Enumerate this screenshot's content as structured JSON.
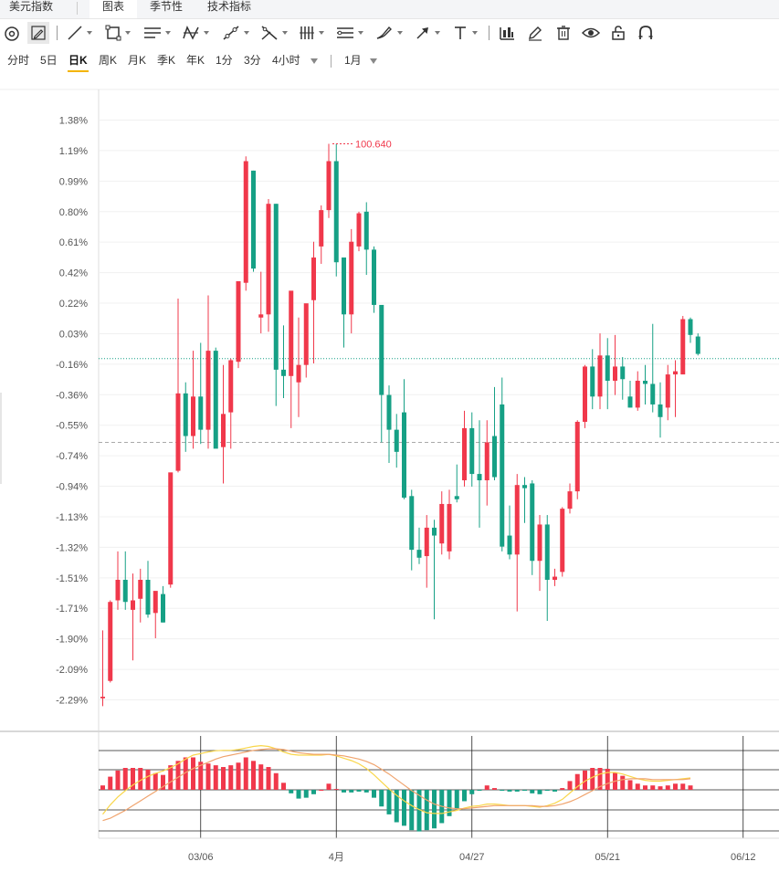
{
  "tabs": [
    {
      "label": "美元指数",
      "active": false
    },
    {
      "label": "图表",
      "active": true
    },
    {
      "label": "季节性",
      "active": false
    },
    {
      "label": "技术指标",
      "active": false
    }
  ],
  "toolbar": {
    "icons": [
      "cursor-icon",
      "pencil-icon",
      "line-icon",
      "rectangle-icon",
      "parallel-lines-icon",
      "pattern-icon",
      "fork-icon",
      "fibonacci-icon",
      "vertical-lines-icon",
      "channel-icon",
      "brush-icon",
      "arrow-icon",
      "text-icon",
      "bar-indicator-icon",
      "edit-icon",
      "trash-icon",
      "eye-icon",
      "lock-icon",
      "magnet-icon"
    ]
  },
  "periods": {
    "items": [
      "分时",
      "5日",
      "日K",
      "周K",
      "月K",
      "季K",
      "年K",
      "1分",
      "3分",
      "4小时"
    ],
    "active": "日K",
    "range_label": "1月"
  },
  "colors": {
    "up": "#f0384b",
    "down": "#16a085",
    "ma_yellow": "#f9d64a",
    "ma_orange": "#f0a46e"
  },
  "chart_data": {
    "type": "candlestick",
    "y_ticks": [
      "1.38%",
      "1.19%",
      "0.99%",
      "0.80%",
      "0.61%",
      "0.42%",
      "0.22%",
      "0.03%",
      "-0.16%",
      "-0.36%",
      "-0.55%",
      "-0.74%",
      "-0.94%",
      "-1.13%",
      "-1.32%",
      "-1.51%",
      "-1.71%",
      "-1.90%",
      "-2.09%",
      "-2.29%"
    ],
    "ylim": [
      -2.29,
      1.38
    ],
    "x_ticks": [
      "03/06",
      "4月",
      "04/27",
      "05/21",
      "06/12"
    ],
    "max_label": "100.640",
    "reference_lines": [
      {
        "value": -0.13,
        "style": "dotted"
      },
      {
        "value": -0.66,
        "style": "dashed"
      }
    ],
    "candles": [
      {
        "o": -2.28,
        "h": -1.85,
        "l": -2.33,
        "c": -2.27
      },
      {
        "o": -2.17,
        "h": -1.66,
        "l": -2.18,
        "c": -1.67
      },
      {
        "o": -1.66,
        "h": -1.35,
        "l": -1.72,
        "c": -1.53
      },
      {
        "o": -1.53,
        "h": -1.35,
        "l": -1.72,
        "c": -1.67
      },
      {
        "o": -1.72,
        "h": -1.49,
        "l": -2.04,
        "c": -1.66
      },
      {
        "o": -1.65,
        "h": -1.46,
        "l": -1.8,
        "c": -1.53
      },
      {
        "o": -1.53,
        "h": -1.41,
        "l": -1.77,
        "c": -1.75
      },
      {
        "o": -1.74,
        "h": -1.62,
        "l": -1.9,
        "c": -1.6
      },
      {
        "o": -1.62,
        "h": -1.57,
        "l": -1.8,
        "c": -1.8
      },
      {
        "o": -1.56,
        "h": -0.88,
        "l": -1.58,
        "c": -0.85
      },
      {
        "o": -0.84,
        "h": 0.25,
        "l": -0.85,
        "c": -0.35
      },
      {
        "o": -0.35,
        "h": -0.28,
        "l": -0.72,
        "c": -0.62
      },
      {
        "o": -0.62,
        "h": -0.08,
        "l": -0.7,
        "c": -0.37
      },
      {
        "o": -0.37,
        "h": -0.03,
        "l": -0.67,
        "c": -0.58
      },
      {
        "o": -0.58,
        "h": 0.27,
        "l": -0.7,
        "c": -0.08
      },
      {
        "o": -0.08,
        "h": -0.06,
        "l": -0.68,
        "c": -0.7
      },
      {
        "o": -0.69,
        "h": -0.17,
        "l": -0.92,
        "c": -0.48
      },
      {
        "o": -0.47,
        "h": -0.13,
        "l": -0.7,
        "c": -0.14
      },
      {
        "o": -0.15,
        "h": 0.35,
        "l": -0.19,
        "c": 0.36
      },
      {
        "o": 0.35,
        "h": 1.15,
        "l": 0.3,
        "c": 1.12
      },
      {
        "o": 1.06,
        "h": 1.06,
        "l": 0.42,
        "c": 0.44
      },
      {
        "o": 0.13,
        "h": 0.42,
        "l": 0.03,
        "c": 0.15
      },
      {
        "o": 0.15,
        "h": 0.88,
        "l": 0.04,
        "c": 0.85
      },
      {
        "o": 0.85,
        "h": 0.85,
        "l": -0.43,
        "c": -0.2
      },
      {
        "o": -0.2,
        "h": 0.08,
        "l": -0.38,
        "c": -0.24
      },
      {
        "o": -0.24,
        "h": 0.28,
        "l": -0.57,
        "c": 0.3
      },
      {
        "o": -0.28,
        "h": 0.13,
        "l": -0.5,
        "c": -0.17
      },
      {
        "o": -0.17,
        "h": 0.21,
        "l": -0.25,
        "c": 0.22
      },
      {
        "o": 0.24,
        "h": 0.61,
        "l": -0.16,
        "c": 0.51
      },
      {
        "o": 0.58,
        "h": 0.84,
        "l": 0.47,
        "c": 0.81
      },
      {
        "o": 0.81,
        "h": 1.23,
        "l": 0.76,
        "c": 1.12
      },
      {
        "o": 1.12,
        "h": 1.23,
        "l": 0.39,
        "c": 0.48
      },
      {
        "o": 0.51,
        "h": 0.51,
        "l": -0.06,
        "c": 0.15
      },
      {
        "o": 0.15,
        "h": 0.69,
        "l": 0.03,
        "c": 0.61
      },
      {
        "o": 0.58,
        "h": 0.8,
        "l": 0.55,
        "c": 0.79
      },
      {
        "o": 0.8,
        "h": 0.86,
        "l": 0.4,
        "c": 0.56
      },
      {
        "o": 0.56,
        "h": 0.58,
        "l": 0.16,
        "c": 0.21
      },
      {
        "o": 0.21,
        "h": 0.21,
        "l": -0.66,
        "c": -0.36
      },
      {
        "o": -0.36,
        "h": -0.3,
        "l": -0.79,
        "c": -0.58
      },
      {
        "o": -0.58,
        "h": -0.48,
        "l": -0.82,
        "c": -0.72
      },
      {
        "o": -0.47,
        "h": -0.26,
        "l": -1.02,
        "c": -1.01
      },
      {
        "o": -1.0,
        "h": -0.96,
        "l": -1.47,
        "c": -1.34
      },
      {
        "o": -1.34,
        "h": -1.2,
        "l": -1.43,
        "c": -1.39
      },
      {
        "o": -1.38,
        "h": -1.12,
        "l": -1.58,
        "c": -1.2
      },
      {
        "o": -1.2,
        "h": -1.15,
        "l": -1.78,
        "c": -1.25
      },
      {
        "o": -1.3,
        "h": -0.97,
        "l": -1.37,
        "c": -1.05
      },
      {
        "o": -1.35,
        "h": -0.96,
        "l": -1.4,
        "c": -1.05
      },
      {
        "o": -1.0,
        "h": -0.8,
        "l": -1.04,
        "c": -1.02
      },
      {
        "o": -0.9,
        "h": -0.46,
        "l": -0.94,
        "c": -0.57
      },
      {
        "o": -0.57,
        "h": -0.47,
        "l": -0.94,
        "c": -0.86
      },
      {
        "o": -0.86,
        "h": -0.52,
        "l": -1.2,
        "c": -0.9
      },
      {
        "o": -0.9,
        "h": -0.52,
        "l": -1.06,
        "c": -0.66
      },
      {
        "o": -0.62,
        "h": -0.31,
        "l": -0.9,
        "c": -0.88
      },
      {
        "o": -0.42,
        "h": -0.25,
        "l": -1.35,
        "c": -1.32
      },
      {
        "o": -1.25,
        "h": -1.06,
        "l": -1.4,
        "c": -1.37
      },
      {
        "o": -1.37,
        "h": -0.86,
        "l": -1.73,
        "c": -0.93
      },
      {
        "o": -0.93,
        "h": -0.88,
        "l": -1.17,
        "c": -0.95
      },
      {
        "o": -0.92,
        "h": -0.9,
        "l": -1.5,
        "c": -1.41
      },
      {
        "o": -1.41,
        "h": -1.12,
        "l": -1.6,
        "c": -1.18
      },
      {
        "o": -1.18,
        "h": -1.12,
        "l": -1.79,
        "c": -1.53
      },
      {
        "o": -1.53,
        "h": -1.46,
        "l": -1.57,
        "c": -1.51
      },
      {
        "o": -1.48,
        "h": -1.07,
        "l": -1.51,
        "c": -1.08
      },
      {
        "o": -1.08,
        "h": -0.92,
        "l": -1.11,
        "c": -0.97
      },
      {
        "o": -0.97,
        "h": -0.52,
        "l": -1.02,
        "c": -0.53
      },
      {
        "o": -0.53,
        "h": -0.17,
        "l": -0.57,
        "c": -0.18
      },
      {
        "o": -0.18,
        "h": -0.07,
        "l": -0.45,
        "c": -0.37
      },
      {
        "o": -0.37,
        "h": 0.03,
        "l": -0.45,
        "c": -0.11
      },
      {
        "o": -0.11,
        "h": 0.0,
        "l": -0.45,
        "c": -0.27
      },
      {
        "o": -0.27,
        "h": 0.02,
        "l": -0.36,
        "c": -0.18
      },
      {
        "o": -0.18,
        "h": -0.12,
        "l": -0.39,
        "c": -0.26
      },
      {
        "o": -0.37,
        "h": -0.27,
        "l": -0.44,
        "c": -0.44
      },
      {
        "o": -0.44,
        "h": -0.21,
        "l": -0.46,
        "c": -0.27
      },
      {
        "o": -0.27,
        "h": -0.17,
        "l": -0.42,
        "c": -0.29
      },
      {
        "o": -0.29,
        "h": 0.09,
        "l": -0.47,
        "c": -0.42
      },
      {
        "o": -0.42,
        "h": -0.28,
        "l": -0.63,
        "c": -0.5
      },
      {
        "o": -0.44,
        "h": -0.17,
        "l": -0.52,
        "c": -0.23
      },
      {
        "o": -0.23,
        "h": -0.14,
        "l": -0.5,
        "c": -0.21
      },
      {
        "o": -0.23,
        "h": 0.14,
        "l": -0.21,
        "c": 0.12
      },
      {
        "o": 0.12,
        "h": 0.13,
        "l": -0.03,
        "c": 0.02
      },
      {
        "o": 0.01,
        "h": 0.03,
        "l": -0.11,
        "c": -0.1
      }
    ],
    "macd": {
      "bars": [
        0.1,
        0.3,
        0.44,
        0.5,
        0.5,
        0.5,
        0.46,
        0.38,
        0.34,
        0.56,
        0.66,
        0.74,
        0.74,
        0.64,
        0.6,
        0.56,
        0.52,
        0.56,
        0.62,
        0.74,
        0.66,
        0.58,
        0.52,
        0.38,
        0.16,
        -0.08,
        -0.2,
        -0.18,
        -0.1,
        0.0,
        0.14,
        0.02,
        -0.06,
        -0.06,
        -0.04,
        -0.06,
        -0.18,
        -0.38,
        -0.56,
        -0.74,
        -0.82,
        -0.92,
        -0.95,
        -0.92,
        -0.88,
        -0.76,
        -0.6,
        -0.44,
        -0.26,
        -0.1,
        -0.02,
        0.1,
        0.04,
        -0.02,
        -0.04,
        -0.04,
        -0.02,
        -0.08,
        -0.1,
        -0.02,
        -0.04,
        0.04,
        0.2,
        0.36,
        0.44,
        0.5,
        0.5,
        0.48,
        0.4,
        0.32,
        0.22,
        0.14,
        0.1,
        0.1,
        0.08,
        0.1,
        0.14,
        0.14,
        0.1
      ],
      "dif": [
        -0.62,
        -0.38,
        -0.18,
        -0.02,
        0.12,
        0.24,
        0.34,
        0.42,
        0.48,
        0.56,
        0.66,
        0.78,
        0.88,
        0.92,
        0.96,
        0.99,
        1.0,
        1.0,
        1.02,
        1.06,
        1.1,
        1.12,
        1.1,
        1.04,
        0.96,
        0.9,
        0.88,
        0.88,
        0.88,
        0.88,
        0.9,
        0.86,
        0.8,
        0.74,
        0.66,
        0.54,
        0.38,
        0.2,
        0.02,
        -0.14,
        -0.28,
        -0.4,
        -0.5,
        -0.58,
        -0.6,
        -0.6,
        -0.56,
        -0.52,
        -0.46,
        -0.42,
        -0.4,
        -0.36,
        -0.36,
        -0.38,
        -0.4,
        -0.4,
        -0.4,
        -0.42,
        -0.44,
        -0.4,
        -0.34,
        -0.24,
        -0.08,
        0.08,
        0.22,
        0.32,
        0.4,
        0.44,
        0.44,
        0.4,
        0.34,
        0.28,
        0.24,
        0.22,
        0.22,
        0.24,
        0.26,
        0.28,
        0.3
      ],
      "dea": [
        -0.78,
        -0.72,
        -0.62,
        -0.52,
        -0.4,
        -0.28,
        -0.16,
        -0.04,
        0.08,
        0.2,
        0.32,
        0.44,
        0.54,
        0.62,
        0.7,
        0.78,
        0.84,
        0.88,
        0.92,
        0.96,
        1.0,
        1.02,
        1.04,
        1.04,
        1.02,
        0.98,
        0.94,
        0.92,
        0.9,
        0.9,
        0.9,
        0.88,
        0.86,
        0.82,
        0.78,
        0.72,
        0.64,
        0.52,
        0.4,
        0.26,
        0.12,
        -0.02,
        -0.14,
        -0.26,
        -0.36,
        -0.42,
        -0.46,
        -0.48,
        -0.48,
        -0.46,
        -0.44,
        -0.42,
        -0.4,
        -0.4,
        -0.4,
        -0.4,
        -0.4,
        -0.4,
        -0.42,
        -0.42,
        -0.4,
        -0.36,
        -0.3,
        -0.22,
        -0.12,
        -0.02,
        0.08,
        0.16,
        0.22,
        0.26,
        0.28,
        0.28,
        0.28,
        0.26,
        0.26,
        0.26,
        0.26,
        0.26,
        0.28
      ]
    }
  }
}
